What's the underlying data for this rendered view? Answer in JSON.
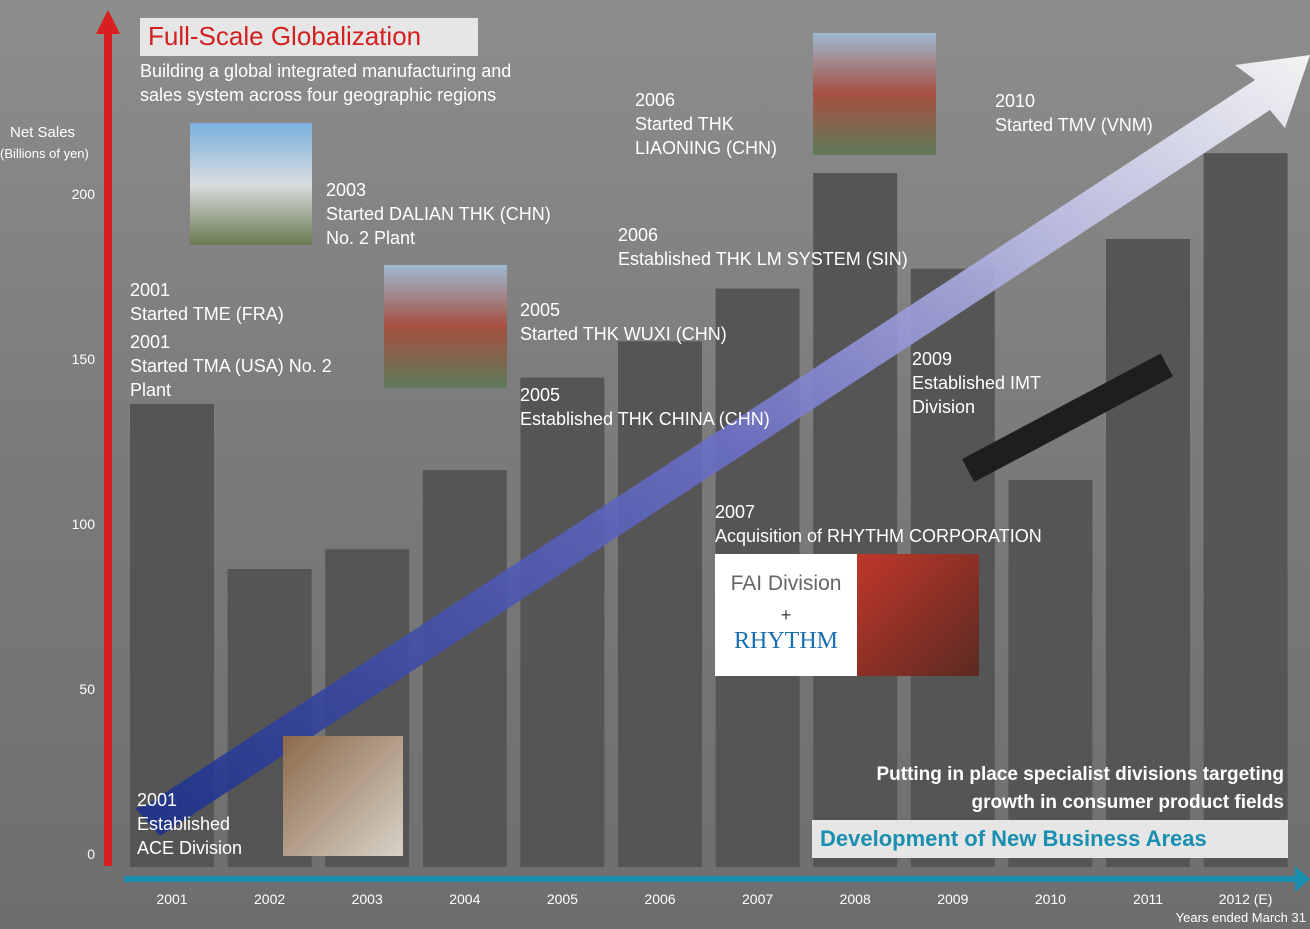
{
  "chart_data": {
    "type": "bar",
    "title": "Full-Scale Globalization",
    "subtitle_lines": [
      "Building a global integrated manufacturing and",
      "sales system across four geographic regions"
    ],
    "y_label": "Net Sales",
    "y_unit": "(Billions of yen)",
    "x_label": "Years ended March 31",
    "categories": [
      "2001",
      "2002",
      "2003",
      "2004",
      "2005",
      "2006",
      "2007",
      "2008",
      "2009",
      "2010",
      "2011",
      "2012 (E)"
    ],
    "values": [
      140,
      90,
      96,
      120,
      148,
      159,
      175,
      210,
      181,
      117,
      190,
      216
    ],
    "color": "#555555",
    "ylim": [
      0,
      250
    ],
    "yticks": [
      0,
      50,
      100,
      150,
      200
    ],
    "annotations": [
      {
        "lines": [
          "2001",
          "Started TME (FRA)"
        ]
      },
      {
        "lines": [
          "2001",
          "Started TMA (USA) No. 2",
          "Plant"
        ]
      },
      {
        "lines": [
          "2003",
          "Started DALIAN THK (CHN)",
          "No. 2 Plant"
        ]
      },
      {
        "lines": [
          "2005",
          "Started THK WUXI (CHN)"
        ]
      },
      {
        "lines": [
          "2005",
          "Established THK CHINA (CHN)"
        ]
      },
      {
        "lines": [
          "2006",
          "Started THK",
          "LIAONING (CHN)"
        ]
      },
      {
        "lines": [
          "2006",
          "Established THK LM SYSTEM (SIN)"
        ]
      },
      {
        "lines": [
          "2007",
          "Acquisition of RHYTHM CORPORATION"
        ]
      },
      {
        "lines": [
          "2009",
          "Established IMT",
          "Division"
        ]
      },
      {
        "lines": [
          "2010",
          "Started TMV (VNM)"
        ]
      },
      {
        "lines": [
          "2001",
          "Established",
          "ACE Division"
        ]
      }
    ],
    "logo_box": {
      "line1": "FAI Division",
      "line2": "+",
      "line3": "RHYTHM"
    },
    "new_business_lines": [
      "Putting in place specialist divisions targeting",
      "growth in consumer product fields"
    ],
    "new_business_title": "Development of New Business Areas"
  }
}
